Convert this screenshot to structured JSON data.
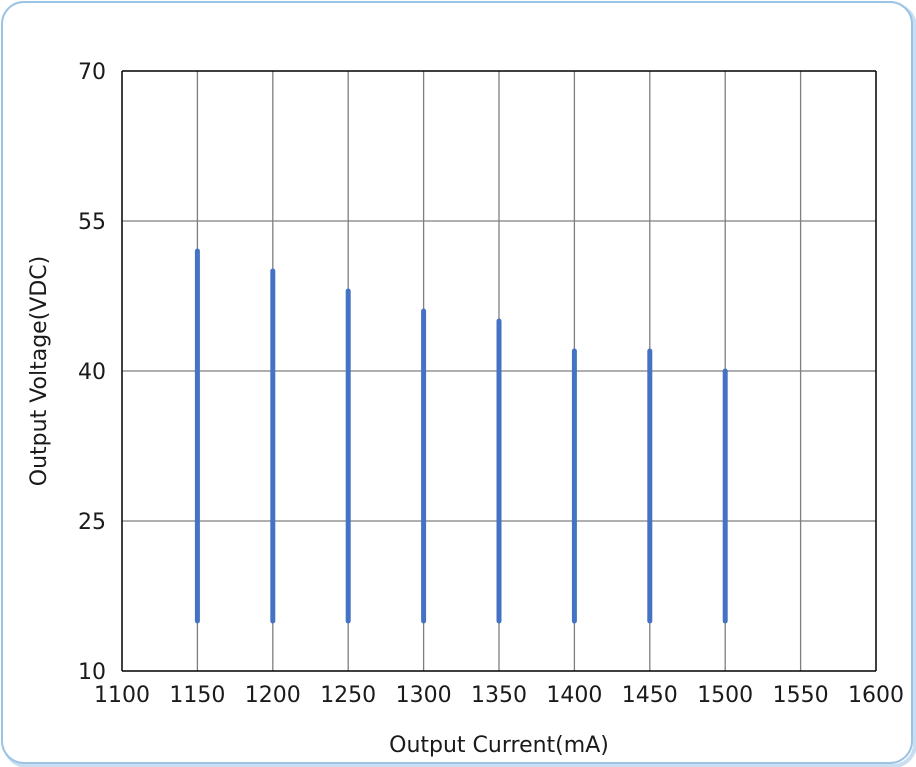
{
  "chart_data": {
    "type": "bar",
    "style": "vertical range bars",
    "title": "",
    "xlabel": "Output Current(mA)",
    "ylabel": "Output Voltage(VDC)",
    "xlim": [
      1100,
      1600
    ],
    "ylim": [
      10,
      70
    ],
    "x_ticks": [
      1100,
      1150,
      1200,
      1250,
      1300,
      1350,
      1400,
      1450,
      1500,
      1550,
      1600
    ],
    "y_ticks": [
      10,
      25,
      40,
      55,
      70
    ],
    "grid": true,
    "legend": "none",
    "bar_color": "#4472c4",
    "series": [
      {
        "x": [
          1150,
          1200,
          1250,
          1300,
          1350,
          1400,
          1450,
          1500
        ],
        "low": [
          15,
          15,
          15,
          15,
          15,
          15,
          15,
          15
        ],
        "high": [
          52,
          50,
          48,
          46,
          45,
          42,
          42,
          40
        ]
      }
    ]
  },
  "frame": {
    "border_color": "#9cc3e4",
    "shadow_color": "#c9dff1"
  }
}
